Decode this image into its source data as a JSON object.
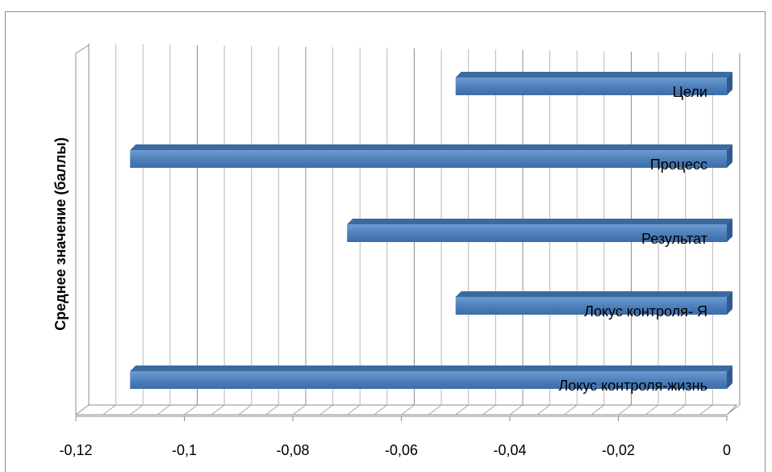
{
  "chart_data": {
    "type": "bar",
    "orientation": "horizontal",
    "style": "3d",
    "ylabel": "Среднее значение (баллы)",
    "xlabel": "",
    "xlim": [
      -0.12,
      0
    ],
    "x_tick_step": 0.02,
    "tick_labels": [
      "-0,12",
      "-0,1",
      "-0,08",
      "-0,06",
      "-0,04",
      "-0,02",
      "0"
    ],
    "grid": true,
    "legend": "none",
    "bar_color": "#4F81BD",
    "categories": [
      "Цели",
      "Процесс",
      "Результат",
      "Локус контроля- Я",
      "Локус контроля-жизнь"
    ],
    "values": [
      -0.05,
      -0.11,
      -0.07,
      -0.05,
      -0.11
    ]
  }
}
